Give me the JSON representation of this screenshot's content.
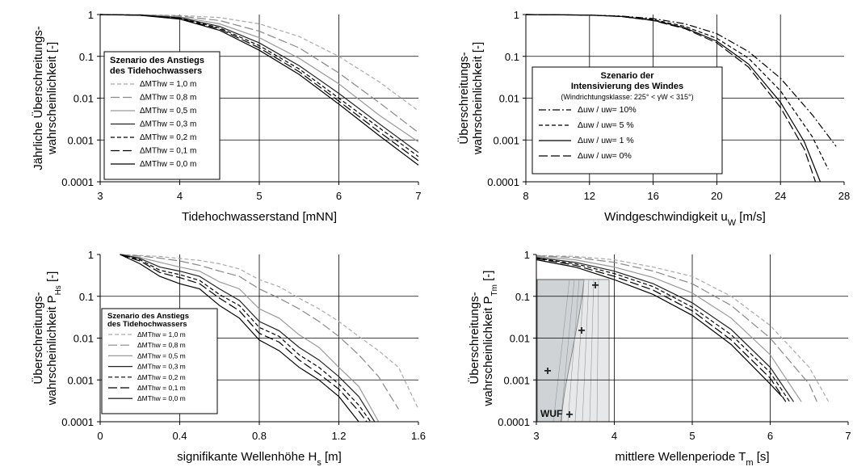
{
  "chart_data": [
    {
      "type": "line",
      "xlabel": "Tidehochwasserstand [mNN]",
      "ylabel_lines": [
        "Jährliche Überschreitungs-",
        "wahrscheinlichkeit  [-]"
      ],
      "xlim": [
        3,
        7
      ],
      "xticks": [
        3,
        4,
        5,
        6,
        7
      ],
      "xtick_labels": [
        "3",
        "4",
        "5",
        "6",
        "7"
      ],
      "yscale": "log",
      "ylim": [
        0.0001,
        1
      ],
      "ytick_labels": [
        "1",
        "0.1",
        "0.01",
        "0.001",
        "0.0001"
      ],
      "grid": true,
      "legend_title_lines": [
        "Szenario des Anstiegs",
        "des Tidehochwassers"
      ],
      "legend_placement": "left",
      "series": [
        {
          "name": "ΔMThw = 1,0 m",
          "style": "dash",
          "color": "#aaaaaa",
          "x": [
            3.0,
            3.5,
            4.0,
            4.5,
            5.0,
            5.5,
            6.0,
            6.5,
            7.0
          ],
          "y": [
            1.0,
            0.99,
            0.95,
            0.85,
            0.6,
            0.3,
            0.1,
            0.025,
            0.005
          ]
        },
        {
          "name": "ΔMThw = 0,8 m",
          "style": "longdash",
          "color": "#888888",
          "x": [
            3.0,
            3.5,
            4.0,
            4.5,
            5.0,
            5.5,
            6.0,
            6.5,
            7.0
          ],
          "y": [
            1.0,
            0.99,
            0.92,
            0.72,
            0.4,
            0.16,
            0.04,
            0.008,
            0.0015
          ]
        },
        {
          "name": "ΔMThw = 0,5 m",
          "style": "solid",
          "color": "#999999",
          "x": [
            3.0,
            3.5,
            4.0,
            4.5,
            5.0,
            5.5,
            6.0,
            6.5,
            7.0
          ],
          "y": [
            1.0,
            0.98,
            0.88,
            0.6,
            0.28,
            0.09,
            0.022,
            0.004,
            0.0009
          ]
        },
        {
          "name": "ΔMThw = 0,3 m",
          "style": "solid",
          "color": "#222222",
          "x": [
            3.0,
            3.5,
            4.0,
            4.5,
            5.0,
            5.5,
            6.0,
            6.5,
            7.0
          ],
          "y": [
            1.0,
            0.97,
            0.84,
            0.52,
            0.21,
            0.06,
            0.013,
            0.0025,
            0.0005
          ]
        },
        {
          "name": "ΔMThw = 0,2 m",
          "style": "dash",
          "color": "#000000",
          "x": [
            3.0,
            3.5,
            4.0,
            4.5,
            5.0,
            5.5,
            6.0,
            6.5,
            7.0
          ],
          "y": [
            1.0,
            0.97,
            0.82,
            0.48,
            0.18,
            0.05,
            0.01,
            0.002,
            0.0004
          ]
        },
        {
          "name": "ΔMThw = 0,1 m",
          "style": "longdash",
          "color": "#000000",
          "x": [
            3.0,
            3.5,
            4.0,
            4.5,
            5.0,
            5.5,
            6.0,
            6.5,
            7.0
          ],
          "y": [
            1.0,
            0.96,
            0.8,
            0.45,
            0.16,
            0.043,
            0.0085,
            0.0016,
            0.00032
          ]
        },
        {
          "name": "ΔMThw = 0,0 m",
          "style": "solid",
          "color": "#000000",
          "x": [
            3.0,
            3.5,
            4.0,
            4.5,
            5.0,
            5.5,
            6.0,
            6.5,
            7.0
          ],
          "y": [
            1.0,
            0.96,
            0.78,
            0.42,
            0.14,
            0.037,
            0.0072,
            0.0013,
            0.00025
          ]
        }
      ]
    },
    {
      "type": "line",
      "xlabel": "Windgeschwindigkeit u",
      "xlabel_sub": "W",
      "xlabel_unit": " [m/s]",
      "ylabel_lines": [
        "Überschreitungs-",
        "wahrscheinlichkeit  [-]"
      ],
      "xlim": [
        8,
        28
      ],
      "xticks": [
        8,
        12,
        16,
        20,
        24,
        28
      ],
      "xtick_labels": [
        "8",
        "12",
        "16",
        "20",
        "24",
        "28"
      ],
      "yscale": "log",
      "ylim": [
        0.0001,
        1
      ],
      "ytick_labels": [
        "1",
        "0.1",
        "0.01",
        "0.001",
        "0.0001"
      ],
      "grid": true,
      "legend_title_lines": [
        "Szenario der",
        "Intensivierung des Windes"
      ],
      "legend_sub": "(Windrichtungsklasse: 225° < γW < 315°)",
      "legend_placement": "center-left",
      "series": [
        {
          "name": "Δuw / uw= 10%",
          "style": "dashdot",
          "color": "#000000",
          "x": [
            8,
            12,
            14,
            16,
            18,
            20,
            22,
            24,
            26,
            27.5
          ],
          "y": [
            1.0,
            0.97,
            0.92,
            0.8,
            0.6,
            0.35,
            0.13,
            0.03,
            0.004,
            0.0007
          ]
        },
        {
          "name": "Δuw / uw= 5 %",
          "style": "dash",
          "color": "#000000",
          "x": [
            8,
            12,
            14,
            16,
            18,
            20,
            22,
            24,
            26,
            27.0
          ],
          "y": [
            1.0,
            0.97,
            0.91,
            0.76,
            0.52,
            0.27,
            0.09,
            0.015,
            0.0012,
            0.0002
          ]
        },
        {
          "name": "Δuw / uw= 1 %",
          "style": "solid",
          "color": "#000000",
          "x": [
            8,
            12,
            14,
            16,
            18,
            20,
            22,
            24,
            25.5,
            26.5
          ],
          "y": [
            1.0,
            0.97,
            0.9,
            0.73,
            0.48,
            0.23,
            0.065,
            0.008,
            0.0009,
            0.0001
          ]
        },
        {
          "name": "Δuw / uw= 0%",
          "style": "longdash",
          "color": "#000000",
          "x": [
            8,
            12,
            14,
            16,
            18,
            20,
            22,
            24,
            25.5,
            26.2
          ],
          "y": [
            1.0,
            0.97,
            0.9,
            0.72,
            0.46,
            0.21,
            0.055,
            0.006,
            0.0006,
            0.0001
          ]
        }
      ]
    },
    {
      "type": "line",
      "xlabel": "signifikante Wellenhöhe   H",
      "xlabel_sub": "s",
      "xlabel_unit": "   [m]",
      "ylabel_lines": [
        "Überschreitungs-",
        "wahrscheinlichkeit P"
      ],
      "ylabel_sub": "Hs",
      "ylabel_unit": " [-]",
      "xlim": [
        0,
        1.6
      ],
      "xticks": [
        0,
        0.4,
        0.8,
        1.2,
        1.6
      ],
      "xtick_labels": [
        "0",
        "0.4",
        "0.8",
        "1.2",
        "1.6"
      ],
      "yscale": "log",
      "ylim": [
        0.0001,
        1
      ],
      "ytick_labels": [
        "1",
        "0.1",
        "0.01",
        "0.001",
        "0.0001"
      ],
      "grid": true,
      "legend_title_lines": [
        "Szenario des Anstiegs",
        "des Tidehochwassers"
      ],
      "legend_placement": "bottom-left",
      "series": [
        {
          "name": "ΔMThw = 1,0 m",
          "style": "dash",
          "color": "#aaaaaa",
          "x": [
            0.1,
            0.2,
            0.3,
            0.4,
            0.5,
            0.6,
            0.7,
            0.8,
            0.9,
            1.0,
            1.1,
            1.2,
            1.3,
            1.4,
            1.5,
            1.6
          ],
          "y": [
            1.0,
            0.95,
            0.9,
            0.8,
            0.72,
            0.6,
            0.45,
            0.25,
            0.17,
            0.09,
            0.05,
            0.025,
            0.011,
            0.005,
            0.002,
            0.0002
          ]
        },
        {
          "name": "ΔMThw = 0,8 m",
          "style": "longdash",
          "color": "#888888",
          "x": [
            0.1,
            0.2,
            0.3,
            0.4,
            0.5,
            0.6,
            0.7,
            0.8,
            0.9,
            1.0,
            1.1,
            1.2,
            1.3,
            1.4,
            1.5
          ],
          "y": [
            1.0,
            0.92,
            0.82,
            0.7,
            0.55,
            0.4,
            0.3,
            0.15,
            0.09,
            0.05,
            0.025,
            0.011,
            0.004,
            0.0012,
            0.0002
          ]
        },
        {
          "name": "ΔMThw = 0,5 m",
          "style": "solid",
          "color": "#999999",
          "x": [
            0.1,
            0.2,
            0.3,
            0.4,
            0.5,
            0.6,
            0.7,
            0.8,
            0.9,
            1.0,
            1.1,
            1.2,
            1.3,
            1.4
          ],
          "y": [
            1.0,
            0.85,
            0.65,
            0.5,
            0.4,
            0.22,
            0.15,
            0.05,
            0.03,
            0.012,
            0.006,
            0.002,
            0.0007,
            0.0001
          ]
        },
        {
          "name": "ΔMThw = 0,3 m",
          "style": "solid",
          "color": "#222222",
          "x": [
            0.1,
            0.2,
            0.3,
            0.4,
            0.5,
            0.6,
            0.7,
            0.8,
            0.9,
            1.0,
            1.1,
            1.2,
            1.3,
            1.38
          ],
          "y": [
            1.0,
            0.8,
            0.5,
            0.4,
            0.3,
            0.15,
            0.08,
            0.025,
            0.015,
            0.006,
            0.003,
            0.0012,
            0.0004,
            0.0001
          ]
        },
        {
          "name": "ΔMThw = 0,2 m",
          "style": "dash",
          "color": "#000000",
          "x": [
            0.1,
            0.2,
            0.3,
            0.4,
            0.5,
            0.6,
            0.7,
            0.8,
            0.9,
            1.0,
            1.1,
            1.2,
            1.3,
            1.36
          ],
          "y": [
            1.0,
            0.75,
            0.42,
            0.33,
            0.24,
            0.11,
            0.06,
            0.018,
            0.011,
            0.004,
            0.002,
            0.0008,
            0.00025,
            0.0001
          ]
        },
        {
          "name": "ΔMThw = 0,1 m",
          "style": "longdash",
          "color": "#000000",
          "x": [
            0.1,
            0.2,
            0.3,
            0.4,
            0.5,
            0.6,
            0.7,
            0.8,
            0.9,
            1.0,
            1.1,
            1.2,
            1.3,
            1.34
          ],
          "y": [
            1.0,
            0.7,
            0.37,
            0.28,
            0.2,
            0.09,
            0.045,
            0.013,
            0.008,
            0.003,
            0.0014,
            0.0006,
            0.00018,
            0.0001
          ]
        },
        {
          "name": "ΔMThw = 0,0 m",
          "style": "solid",
          "color": "#000000",
          "x": [
            0.1,
            0.2,
            0.3,
            0.4,
            0.5,
            0.6,
            0.7,
            0.8,
            0.9,
            1.0,
            1.1,
            1.2,
            1.3
          ],
          "y": [
            1.0,
            0.6,
            0.3,
            0.2,
            0.15,
            0.06,
            0.03,
            0.009,
            0.005,
            0.002,
            0.001,
            0.0004,
            0.0001
          ]
        }
      ]
    },
    {
      "type": "line",
      "xlabel": "mittlere Wellenperiode   T",
      "xlabel_sub": "m",
      "xlabel_unit": "    [s]",
      "ylabel_lines": [
        "Überschreitungs-",
        "wahrscheinlichkeit P"
      ],
      "ylabel_sub": "Tm",
      "ylabel_unit": " [-]",
      "xlim": [
        3,
        7
      ],
      "xticks": [
        3,
        4,
        5,
        6,
        7
      ],
      "xtick_labels": [
        "3",
        "4",
        "5",
        "6",
        "7"
      ],
      "yscale": "log",
      "ylim": [
        0.0001,
        1
      ],
      "ytick_labels": [
        "1",
        "0.1",
        "0.01",
        "0.001",
        "0.0001"
      ],
      "grid": true,
      "inset_map_label": "WUF",
      "series": [
        {
          "name": "ΔMThw = 1,0 m",
          "style": "dash",
          "color": "#aaaaaa",
          "x": [
            3.0,
            3.5,
            4.0,
            4.5,
            5.0,
            5.5,
            6.0,
            6.5,
            6.75
          ],
          "y": [
            0.95,
            0.9,
            0.75,
            0.5,
            0.3,
            0.1,
            0.02,
            0.002,
            0.0003
          ]
        },
        {
          "name": "ΔMThw = 0,8 m",
          "style": "longdash",
          "color": "#888888",
          "x": [
            3.0,
            3.5,
            4.0,
            4.5,
            5.0,
            5.5,
            6.0,
            6.5,
            6.6
          ],
          "y": [
            0.93,
            0.85,
            0.65,
            0.4,
            0.2,
            0.06,
            0.01,
            0.0008,
            0.0003
          ]
        },
        {
          "name": "ΔMThw = 0,5 m",
          "style": "solid",
          "color": "#999999",
          "x": [
            3.0,
            3.5,
            4.0,
            4.5,
            5.0,
            5.5,
            6.0,
            6.4
          ],
          "y": [
            0.9,
            0.75,
            0.5,
            0.28,
            0.12,
            0.03,
            0.004,
            0.0003
          ]
        },
        {
          "name": "ΔMThw = 0,3 m",
          "style": "solid",
          "color": "#222222",
          "x": [
            3.0,
            3.5,
            4.0,
            4.5,
            5.0,
            5.5,
            6.0,
            6.3
          ],
          "y": [
            0.85,
            0.65,
            0.4,
            0.2,
            0.07,
            0.016,
            0.002,
            0.0003
          ]
        },
        {
          "name": "ΔMThw = 0,2 m",
          "style": "dash",
          "color": "#000000",
          "x": [
            3.0,
            3.5,
            4.0,
            4.5,
            5.0,
            5.5,
            6.0,
            6.25
          ],
          "y": [
            0.82,
            0.6,
            0.35,
            0.17,
            0.055,
            0.012,
            0.0015,
            0.0003
          ]
        },
        {
          "name": "ΔMThw = 0,1 m",
          "style": "longdash",
          "color": "#000000",
          "x": [
            3.0,
            3.5,
            4.0,
            4.5,
            5.0,
            5.5,
            6.0,
            6.2
          ],
          "y": [
            0.8,
            0.55,
            0.3,
            0.14,
            0.045,
            0.009,
            0.0011,
            0.0003
          ]
        },
        {
          "name": "ΔMThw = 0,0 m",
          "style": "solid",
          "color": "#000000",
          "x": [
            3.0,
            3.5,
            4.0,
            4.5,
            5.0,
            5.5,
            6.0,
            6.15
          ],
          "y": [
            0.75,
            0.5,
            0.25,
            0.11,
            0.035,
            0.007,
            0.0008,
            0.0004
          ]
        }
      ]
    }
  ]
}
